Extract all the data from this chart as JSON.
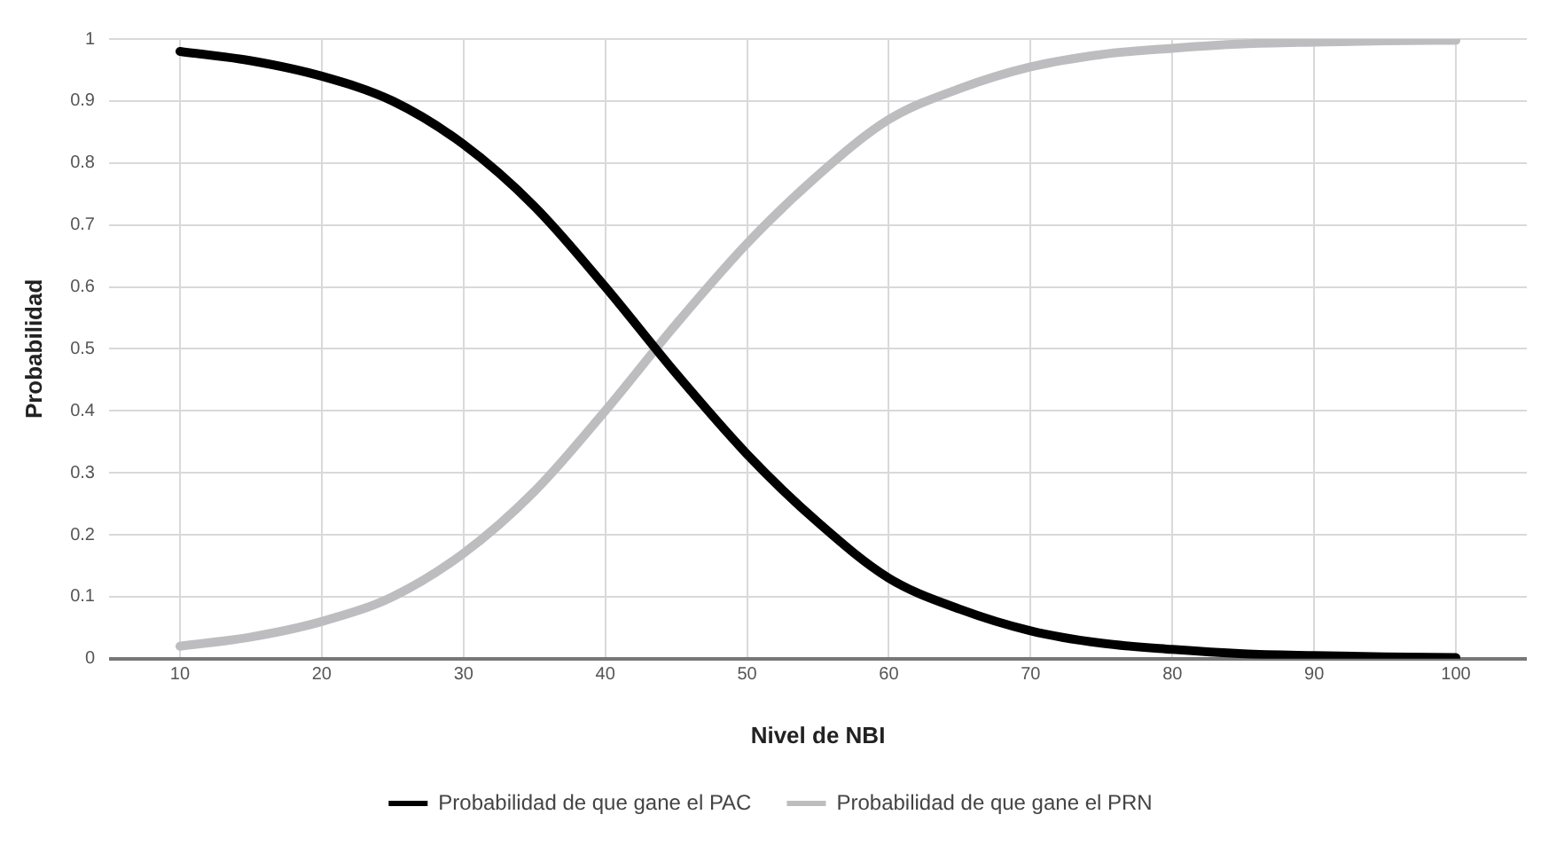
{
  "chart_data": {
    "type": "line",
    "xlabel": "Nivel de NBI",
    "ylabel": "Probabilidad",
    "x": [
      10,
      15,
      20,
      25,
      30,
      35,
      40,
      45,
      50,
      55,
      60,
      65,
      70,
      75,
      80,
      85,
      90,
      95,
      100
    ],
    "series": [
      {
        "name": "Probabilidad de que gane el PAC",
        "color": "#000000",
        "values": [
          0.98,
          0.965,
          0.94,
          0.9,
          0.83,
          0.73,
          0.6,
          0.46,
          0.33,
          0.22,
          0.13,
          0.08,
          0.045,
          0.025,
          0.015,
          0.008,
          0.005,
          0.003,
          0.002
        ]
      },
      {
        "name": "Probabilidad de que gane el PRN",
        "color": "#bdbdc0",
        "values": [
          0.02,
          0.035,
          0.06,
          0.1,
          0.17,
          0.27,
          0.4,
          0.54,
          0.67,
          0.78,
          0.87,
          0.92,
          0.955,
          0.975,
          0.985,
          0.992,
          0.995,
          0.997,
          0.998
        ]
      }
    ],
    "xlim": [
      5,
      105
    ],
    "xticks": [
      10,
      20,
      30,
      40,
      50,
      60,
      70,
      80,
      90,
      100
    ],
    "ylim": [
      0,
      1
    ],
    "yticks": [
      0,
      0.1,
      0.2,
      0.3,
      0.4,
      0.5,
      0.6,
      0.7,
      0.8,
      0.9,
      1
    ],
    "grid": true,
    "legend": "bottom",
    "marker": "none",
    "line_style": "solid"
  }
}
